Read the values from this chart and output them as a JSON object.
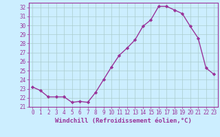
{
  "x": [
    0,
    1,
    2,
    3,
    4,
    5,
    6,
    7,
    8,
    9,
    10,
    11,
    12,
    13,
    14,
    15,
    16,
    17,
    18,
    19,
    20,
    21,
    22,
    23
  ],
  "y": [
    23.2,
    22.8,
    22.1,
    22.1,
    22.1,
    21.5,
    21.6,
    21.5,
    22.6,
    24.0,
    25.4,
    26.7,
    27.5,
    28.4,
    29.9,
    30.6,
    32.1,
    32.1,
    31.7,
    31.3,
    29.9,
    28.6,
    25.3,
    24.6
  ],
  "line_color": "#993399",
  "marker": "D",
  "markersize": 2.2,
  "linewidth": 1.0,
  "ylim": [
    21,
    32.5
  ],
  "yticks": [
    21,
    22,
    23,
    24,
    25,
    26,
    27,
    28,
    29,
    30,
    31,
    32
  ],
  "xticks": [
    0,
    1,
    2,
    3,
    4,
    5,
    6,
    7,
    8,
    9,
    10,
    11,
    12,
    13,
    14,
    15,
    16,
    17,
    18,
    19,
    20,
    21,
    22,
    23
  ],
  "xlabel": "Windchill (Refroidissement éolien,°C)",
  "xlabel_fontsize": 6.5,
  "tick_fontsize": 5.5,
  "bg_color": "#cceeff",
  "grid_color": "#aacccc",
  "axis_color": "#993399",
  "spine_color": "#993399"
}
